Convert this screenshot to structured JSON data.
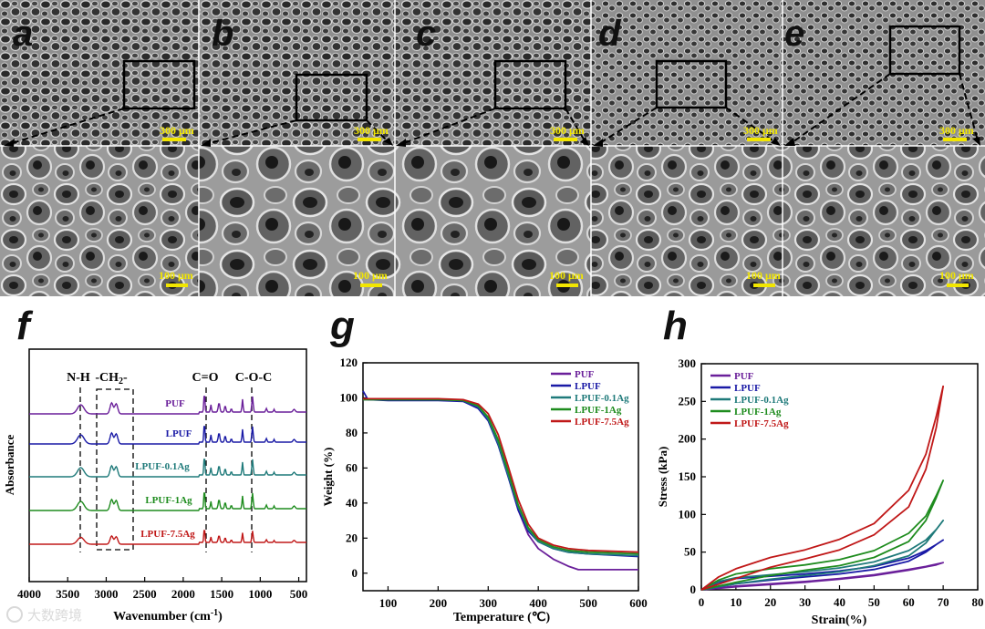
{
  "sem": {
    "panel_labels": [
      "a",
      "b",
      "c",
      "d",
      "e"
    ],
    "top_scale": "300 μm",
    "bottom_scale": "100 μm",
    "colors": {
      "scale": "#f2e600",
      "label": "#111111"
    }
  },
  "watermark": "大数跨境",
  "chart_data": [
    {
      "panel": "f",
      "type": "line",
      "title": "",
      "xlabel": "Wavenumber (cm",
      "xlabel_sup": "-1",
      "xlabel_end": ")",
      "ylabel": "Absorbance",
      "xlim": [
        4000,
        400
      ],
      "xticks": [
        "4000",
        "3500",
        "3000",
        "2500",
        "2000",
        "1500",
        "1000",
        "500"
      ],
      "peak_labels": [
        "N-H",
        "-CH",
        "2",
        "-",
        "C=O",
        "C-O-C"
      ],
      "series": [
        {
          "name": "PUF",
          "color": "#6a1f9a",
          "baseline": 454
        },
        {
          "name": "LPUF",
          "color": "#1a1aa6",
          "baseline": 487
        },
        {
          "name": "LPUF-0.1Ag",
          "color": "#1f7a7a",
          "baseline": 523
        },
        {
          "name": "LPUF-1Ag",
          "color": "#1e8c1e",
          "baseline": 560
        },
        {
          "name": "LPUF-7.5Ag",
          "color": "#c01818",
          "baseline": 597
        }
      ]
    },
    {
      "panel": "g",
      "type": "line",
      "title": "",
      "xlabel": "Temperature (℃)",
      "ylabel": "Weight (%)",
      "xlim": [
        50,
        600
      ],
      "ylim": [
        -10,
        120
      ],
      "xticks": [
        "100",
        "200",
        "300",
        "400",
        "500",
        "600"
      ],
      "yticks": [
        "0",
        "20",
        "40",
        "60",
        "80",
        "100",
        "120"
      ],
      "series": [
        {
          "name": "PUF",
          "color": "#6a1f9a",
          "x": [
            50,
            100,
            200,
            250,
            280,
            300,
            320,
            340,
            360,
            380,
            400,
            430,
            460,
            480,
            600
          ],
          "y": [
            99,
            99,
            99,
            98.5,
            95,
            88,
            74,
            56,
            36,
            22,
            14,
            8,
            4,
            2,
            2
          ]
        },
        {
          "name": "LPUF",
          "color": "#1a1aa6",
          "x": [
            50,
            60,
            100,
            200,
            250,
            280,
            300,
            320,
            340,
            360,
            380,
            400,
            430,
            460,
            500,
            600
          ],
          "y": [
            104,
            99,
            98.5,
            98.5,
            98,
            94,
            87,
            73,
            55,
            36,
            24,
            18,
            14,
            12,
            11,
            9.5
          ]
        },
        {
          "name": "LPUF-0.1Ag",
          "color": "#1f7a7a",
          "x": [
            50,
            100,
            200,
            250,
            280,
            300,
            320,
            340,
            360,
            380,
            400,
            430,
            460,
            500,
            600
          ],
          "y": [
            99,
            99,
            99,
            98.5,
            95,
            88,
            74,
            56,
            38,
            25,
            18,
            14,
            12,
            11,
            10
          ]
        },
        {
          "name": "LPUF-1Ag",
          "color": "#1e8c1e",
          "x": [
            50,
            100,
            200,
            250,
            280,
            300,
            320,
            340,
            360,
            380,
            400,
            430,
            460,
            500,
            600
          ],
          "y": [
            99,
            99,
            99,
            98.5,
            95.5,
            89,
            76,
            58,
            39,
            26,
            19,
            15,
            13,
            12,
            11
          ]
        },
        {
          "name": "LPUF-7.5Ag",
          "color": "#c01818",
          "x": [
            50,
            100,
            200,
            250,
            280,
            300,
            320,
            340,
            360,
            380,
            400,
            430,
            460,
            500,
            600
          ],
          "y": [
            99.5,
            99.5,
            99.5,
            99,
            96.5,
            91,
            79,
            61,
            42,
            28,
            20,
            16,
            14,
            13,
            12
          ]
        }
      ]
    },
    {
      "panel": "h",
      "type": "line",
      "title": "",
      "xlabel": "Strain(%)",
      "ylabel": "Stress (kPa)",
      "xlim": [
        0,
        80
      ],
      "ylim": [
        0,
        300
      ],
      "xticks": [
        "0",
        "10",
        "20",
        "30",
        "40",
        "50",
        "60",
        "70",
        "80"
      ],
      "yticks": [
        "0",
        "50",
        "100",
        "150",
        "200",
        "250",
        "300"
      ],
      "series": [
        {
          "name": "PUF",
          "color": "#6a1f9a",
          "x": [
            0,
            10,
            20,
            30,
            40,
            50,
            60,
            65,
            68,
            70,
            68,
            60,
            50,
            40,
            30,
            20,
            10,
            0
          ],
          "y": [
            0,
            5,
            8,
            11,
            15,
            20,
            27,
            31,
            34,
            36,
            33,
            26,
            19,
            14,
            10,
            7,
            4,
            0
          ]
        },
        {
          "name": "LPUF",
          "color": "#1a1aa6",
          "x": [
            0,
            5,
            10,
            20,
            30,
            40,
            50,
            60,
            65,
            68,
            70,
            68,
            65,
            60,
            50,
            40,
            30,
            20,
            10,
            0
          ],
          "y": [
            0,
            10,
            15,
            18,
            21,
            25,
            31,
            42,
            52,
            60,
            66,
            60,
            50,
            38,
            27,
            21,
            17,
            13,
            8,
            0
          ]
        },
        {
          "name": "LPUF-0.1Ag",
          "color": "#1f7a7a",
          "x": [
            0,
            5,
            10,
            20,
            30,
            40,
            50,
            60,
            65,
            68,
            70,
            68,
            65,
            60,
            50,
            40,
            30,
            20,
            10,
            0
          ],
          "y": [
            0,
            11,
            16,
            20,
            24,
            29,
            37,
            52,
            66,
            80,
            92,
            80,
            62,
            45,
            32,
            24,
            19,
            14,
            8,
            0
          ]
        },
        {
          "name": "LPUF-1Ag",
          "color": "#1e8c1e",
          "x": [
            0,
            5,
            10,
            20,
            30,
            40,
            50,
            60,
            65,
            68,
            70,
            68,
            65,
            60,
            50,
            40,
            30,
            20,
            10,
            0
          ],
          "y": [
            0,
            13,
            21,
            28,
            33,
            40,
            52,
            75,
            98,
            125,
            145,
            122,
            92,
            64,
            43,
            32,
            26,
            19,
            10,
            0
          ]
        },
        {
          "name": "LPUF-7.5Ag",
          "color": "#c01818",
          "x": [
            0,
            5,
            10,
            20,
            30,
            40,
            50,
            60,
            65,
            68,
            70,
            68,
            65,
            60,
            50,
            40,
            30,
            20,
            10,
            0
          ],
          "y": [
            0,
            17,
            28,
            43,
            53,
            67,
            88,
            132,
            180,
            230,
            270,
            215,
            160,
            110,
            73,
            53,
            41,
            30,
            15,
            0
          ]
        }
      ]
    }
  ]
}
